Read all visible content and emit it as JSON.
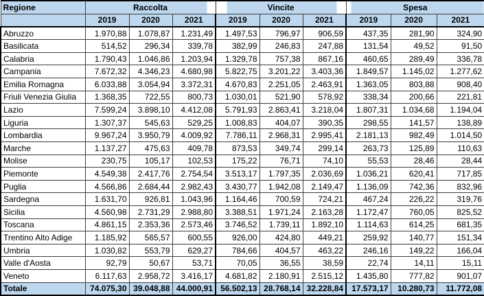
{
  "colors": {
    "header_bg": "#BDD7EE",
    "grid_line": "#3c3c3c",
    "strong_line": "#000000",
    "body_bg": "#ffffff",
    "text": "#000000"
  },
  "table": {
    "region_column_header": "Regione",
    "groups": [
      "Raccolta",
      "Vincite",
      "Spesa"
    ],
    "years": [
      "2019",
      "2020",
      "2021"
    ],
    "rows": [
      {
        "region": "Abruzzo",
        "values": [
          "1.970,88",
          "1.078,87",
          "1.231,49",
          "1.497,53",
          "796,97",
          "906,59",
          "437,35",
          "281,90",
          "324,90"
        ]
      },
      {
        "region": "Basilicata",
        "values": [
          "514,52",
          "296,34",
          "339,78",
          "382,99",
          "246,83",
          "247,88",
          "131,54",
          "49,52",
          "91,50"
        ]
      },
      {
        "region": "Calabria",
        "values": [
          "1.790,43",
          "1.046,86",
          "1.203,94",
          "1.329,78",
          "757,38",
          "867,16",
          "460,65",
          "289,49",
          "336,78"
        ]
      },
      {
        "region": "Campania",
        "values": [
          "7.672,32",
          "4.346,23",
          "4.680,98",
          "5.822,75",
          "3.201,22",
          "3.403,36",
          "1.849,57",
          "1.145,02",
          "1.277,62"
        ]
      },
      {
        "region": "Emilia Romagna",
        "values": [
          "6.033,88",
          "3.054,94",
          "3.372,31",
          "4.670,83",
          "2.251,05",
          "2.463,91",
          "1.363,05",
          "803,88",
          "908,40"
        ]
      },
      {
        "region": "Friuli Venezia Giulia",
        "values": [
          "1.368,35",
          "722,55",
          "800,73",
          "1.030,01",
          "521,90",
          "578,92",
          "338,34",
          "200,66",
          "221,81"
        ]
      },
      {
        "region": "Lazio",
        "values": [
          "7.599,24",
          "3.898,10",
          "4.412,08",
          "5.791,93",
          "2.863,41",
          "3.218,04",
          "1.807,31",
          "1.034,68",
          "1.194,04"
        ]
      },
      {
        "region": "Liguria",
        "values": [
          "1.307,37",
          "545,63",
          "529,25",
          "1.008,83",
          "404,07",
          "390,35",
          "298,55",
          "141,57",
          "138,89"
        ]
      },
      {
        "region": "Lombardia",
        "values": [
          "9.967,24",
          "3.950,79",
          "4.009,92",
          "7.786,11",
          "2.968,31",
          "2.995,41",
          "2.181,13",
          "982,49",
          "1.014,50"
        ]
      },
      {
        "region": "Marche",
        "values": [
          "1.137,27",
          "475,63",
          "409,78",
          "873,53",
          "349,74",
          "299,14",
          "263,73",
          "125,89",
          "110,63"
        ]
      },
      {
        "region": "Molise",
        "values": [
          "230,75",
          "105,17",
          "102,53",
          "175,22",
          "76,71",
          "74,10",
          "55,53",
          "28,46",
          "28,44"
        ]
      },
      {
        "region": "Piemonte",
        "values": [
          "4.549,38",
          "2.417,76",
          "2.754,54",
          "3.513,17",
          "1.797,35",
          "2.036,69",
          "1.036,21",
          "620,41",
          "717,85"
        ]
      },
      {
        "region": "Puglia",
        "values": [
          "4.566,86",
          "2.684,44",
          "2.982,43",
          "3.430,77",
          "1.942,08",
          "2.149,47",
          "1.136,09",
          "742,36",
          "832,96"
        ]
      },
      {
        "region": "Sardegna",
        "values": [
          "1.631,70",
          "926,81",
          "1.043,96",
          "1.164,46",
          "700,59",
          "724,21",
          "467,24",
          "226,22",
          "319,76"
        ]
      },
      {
        "region": "Sicilia",
        "values": [
          "4.560,98",
          "2.731,29",
          "2.988,80",
          "3.388,51",
          "1.971,24",
          "2.163,28",
          "1.172,47",
          "760,05",
          "825,52"
        ]
      },
      {
        "region": "Toscana",
        "values": [
          "4.861,15",
          "2.353,36",
          "2.573,46",
          "3.746,52",
          "1.739,11",
          "1.892,10",
          "1.114,63",
          "614,25",
          "681,35"
        ]
      },
      {
        "region": "Trentino Alto Adige",
        "values": [
          "1.185,92",
          "565,57",
          "600,55",
          "926,00",
          "424,80",
          "449,21",
          "259,92",
          "140,77",
          "151,34"
        ]
      },
      {
        "region": "Umbria",
        "values": [
          "1.030,82",
          "553,79",
          "629,27",
          "784,66",
          "404,57",
          "463,22",
          "246,16",
          "149,22",
          "166,04"
        ]
      },
      {
        "region": "Valle d'Aosta",
        "values": [
          "92,79",
          "50,67",
          "53,71",
          "70,05",
          "36,55",
          "38,59",
          "22,74",
          "14,11",
          "15,11"
        ]
      },
      {
        "region": "Veneto",
        "values": [
          "6.117,63",
          "2.958,72",
          "3.416,17",
          "4.681,82",
          "2.180,91",
          "2.515,12",
          "1.435,80",
          "777,82",
          "901,07"
        ]
      }
    ],
    "total": {
      "region": "Totale",
      "values": [
        "74.075,30",
        "39.048,88",
        "44.000,91",
        "56.502,13",
        "28.768,14",
        "32.228,84",
        "17.573,17",
        "10.280,73",
        "11.772,08"
      ]
    }
  },
  "chart_data": {
    "type": "table",
    "title": "",
    "number_format": "it-IT (thousands '.', decimal ',')",
    "columns": [
      "Regione",
      "Raccolta 2019",
      "Raccolta 2020",
      "Raccolta 2021",
      "Vincite 2019",
      "Vincite 2020",
      "Vincite 2021",
      "Spesa 2019",
      "Spesa 2020",
      "Spesa 2021"
    ],
    "rows": [
      [
        "Abruzzo",
        1970.88,
        1078.87,
        1231.49,
        1497.53,
        796.97,
        906.59,
        437.35,
        281.9,
        324.9
      ],
      [
        "Basilicata",
        514.52,
        296.34,
        339.78,
        382.99,
        246.83,
        247.88,
        131.54,
        49.52,
        91.5
      ],
      [
        "Calabria",
        1790.43,
        1046.86,
        1203.94,
        1329.78,
        757.38,
        867.16,
        460.65,
        289.49,
        336.78
      ],
      [
        "Campania",
        7672.32,
        4346.23,
        4680.98,
        5822.75,
        3201.22,
        3403.36,
        1849.57,
        1145.02,
        1277.62
      ],
      [
        "Emilia Romagna",
        6033.88,
        3054.94,
        3372.31,
        4670.83,
        2251.05,
        2463.91,
        1363.05,
        803.88,
        908.4
      ],
      [
        "Friuli Venezia Giulia",
        1368.35,
        722.55,
        800.73,
        1030.01,
        521.9,
        578.92,
        338.34,
        200.66,
        221.81
      ],
      [
        "Lazio",
        7599.24,
        3898.1,
        4412.08,
        5791.93,
        2863.41,
        3218.04,
        1807.31,
        1034.68,
        1194.04
      ],
      [
        "Liguria",
        1307.37,
        545.63,
        529.25,
        1008.83,
        404.07,
        390.35,
        298.55,
        141.57,
        138.89
      ],
      [
        "Lombardia",
        9967.24,
        3950.79,
        4009.92,
        7786.11,
        2968.31,
        2995.41,
        2181.13,
        982.49,
        1014.5
      ],
      [
        "Marche",
        1137.27,
        475.63,
        409.78,
        873.53,
        349.74,
        299.14,
        263.73,
        125.89,
        110.63
      ],
      [
        "Molise",
        230.75,
        105.17,
        102.53,
        175.22,
        76.71,
        74.1,
        55.53,
        28.46,
        28.44
      ],
      [
        "Piemonte",
        4549.38,
        2417.76,
        2754.54,
        3513.17,
        1797.35,
        2036.69,
        1036.21,
        620.41,
        717.85
      ],
      [
        "Puglia",
        4566.86,
        2684.44,
        2982.43,
        3430.77,
        1942.08,
        2149.47,
        1136.09,
        742.36,
        832.96
      ],
      [
        "Sardegna",
        1631.7,
        926.81,
        1043.96,
        1164.46,
        700.59,
        724.21,
        467.24,
        226.22,
        319.76
      ],
      [
        "Sicilia",
        4560.98,
        2731.29,
        2988.8,
        3388.51,
        1971.24,
        2163.28,
        1172.47,
        760.05,
        825.52
      ],
      [
        "Toscana",
        4861.15,
        2353.36,
        2573.46,
        3746.52,
        1739.11,
        1892.1,
        1114.63,
        614.25,
        681.35
      ],
      [
        "Trentino Alto Adige",
        1185.92,
        565.57,
        600.55,
        926.0,
        424.8,
        449.21,
        259.92,
        140.77,
        151.34
      ],
      [
        "Umbria",
        1030.82,
        553.79,
        629.27,
        784.66,
        404.57,
        463.22,
        246.16,
        149.22,
        166.04
      ],
      [
        "Valle d'Aosta",
        92.79,
        50.67,
        53.71,
        70.05,
        36.55,
        38.59,
        22.74,
        14.11,
        15.11
      ],
      [
        "Veneto",
        6117.63,
        2958.72,
        3416.17,
        4681.82,
        2180.91,
        2515.12,
        1435.8,
        777.82,
        901.07
      ]
    ],
    "total_row": [
      "Totale",
      74075.3,
      39048.88,
      44000.91,
      56502.13,
      28768.14,
      32228.84,
      17573.17,
      10280.73,
      11772.08
    ]
  }
}
